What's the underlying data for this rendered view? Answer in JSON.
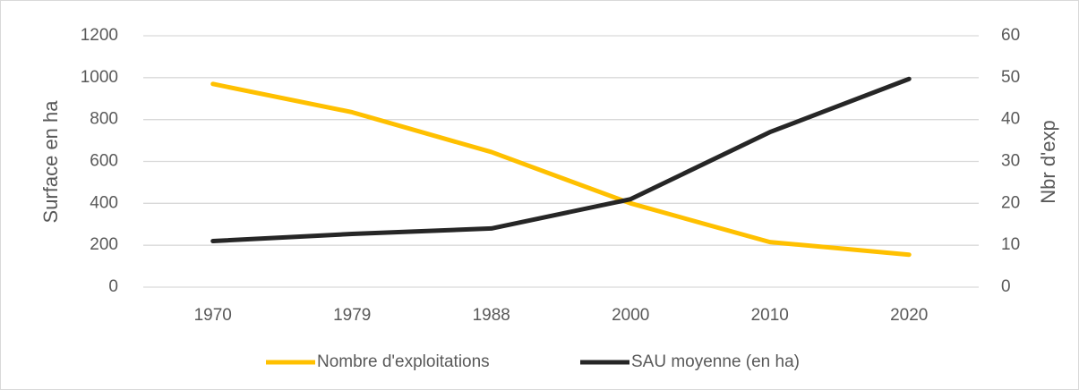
{
  "chart_data": {
    "type": "line",
    "categories": [
      "1970",
      "1979",
      "1988",
      "2000",
      "2010",
      "2020"
    ],
    "series": [
      {
        "name": "Nombre d'exploitations",
        "color": "#ffc000",
        "values": [
          970,
          835,
          645,
          400,
          215,
          155
        ]
      },
      {
        "name": "SAU moyenne (en ha)",
        "color": "#262626",
        "axis": "y2",
        "values": [
          11,
          12.7,
          14,
          21,
          37,
          49.7
        ]
      }
    ],
    "ylabel": "Surface en ha",
    "y2label": "Nbr d'exp",
    "ylim": [
      0,
      1200
    ],
    "yticks": [
      0,
      200,
      400,
      600,
      800,
      1000,
      1200
    ],
    "y2lim": [
      0,
      60
    ],
    "y2ticks": [
      0,
      10,
      20,
      30,
      40,
      50,
      60
    ],
    "grid": true,
    "legend": "bottom"
  }
}
